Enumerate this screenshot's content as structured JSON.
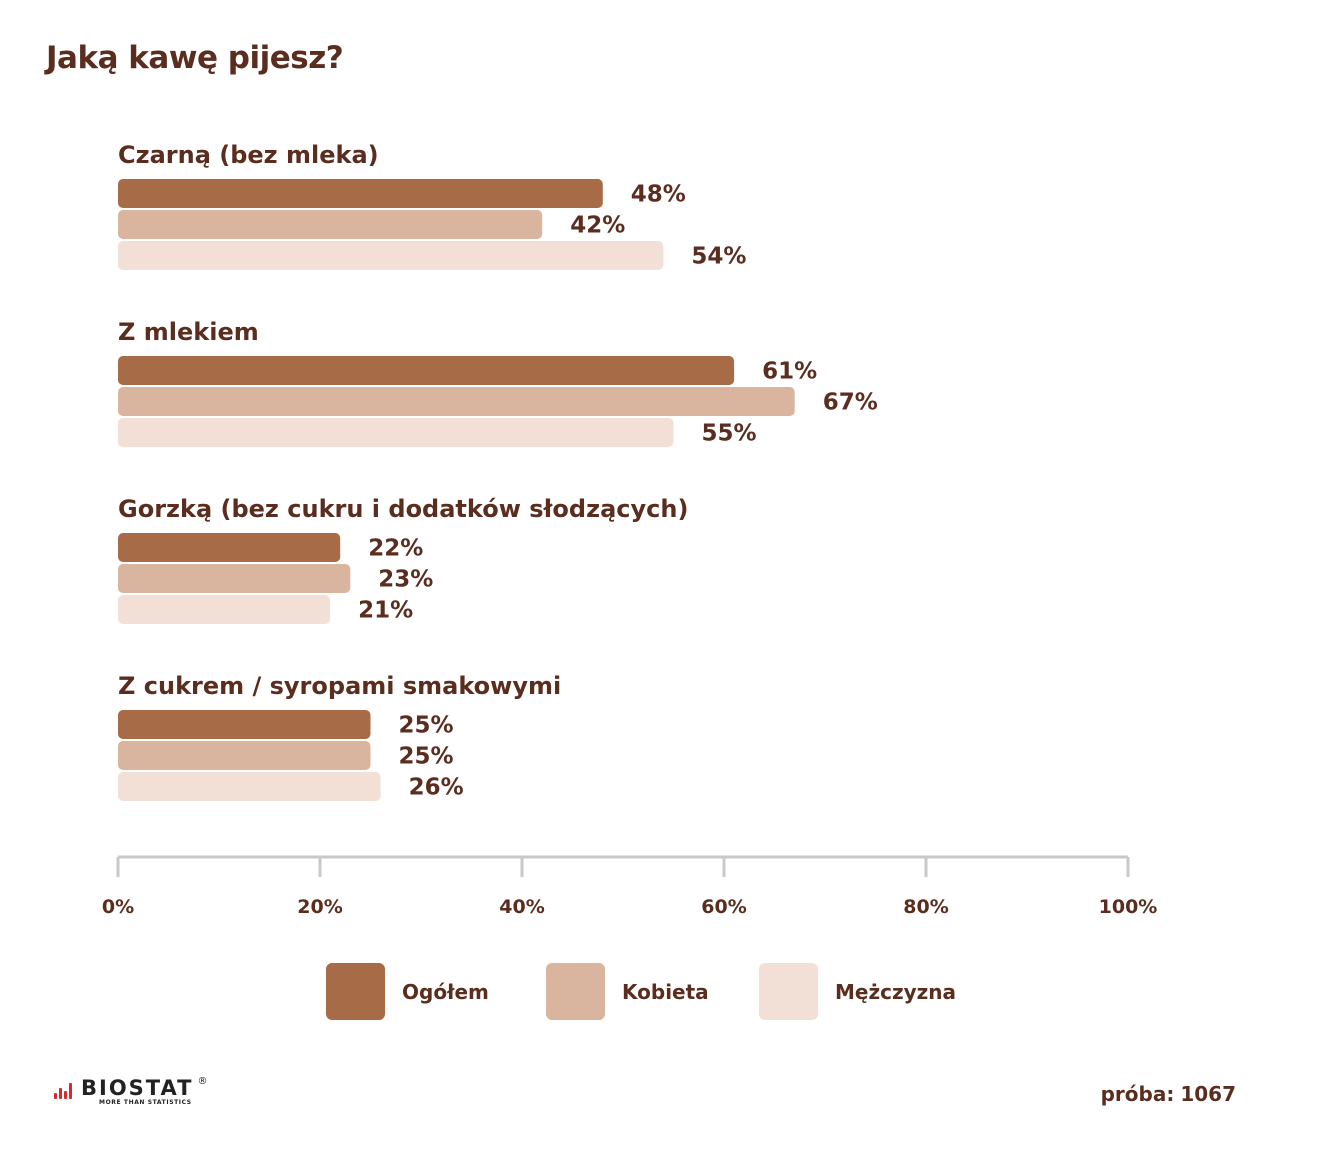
{
  "chart_data": {
    "type": "bar",
    "orientation": "horizontal",
    "title": "Jaką kawę pijesz?",
    "categories": [
      "Czarną (bez mleka)",
      "Z mlekiem",
      "Gorzką (bez cukru i dodatków słodzących)",
      "Z cukrem / syropami smakowymi"
    ],
    "series": [
      {
        "name": "Ogółem",
        "color": "#a86b48",
        "values": [
          48,
          61,
          22,
          25
        ]
      },
      {
        "name": "Kobieta",
        "color": "#d9b49e",
        "values": [
          42,
          67,
          23,
          25
        ]
      },
      {
        "name": "Mężczyzna",
        "color": "#f2e0d6",
        "values": [
          54,
          55,
          21,
          26
        ]
      }
    ],
    "value_suffix": "%",
    "xlim": [
      0,
      100
    ],
    "ticks": [
      0,
      20,
      40,
      60,
      80,
      100
    ],
    "tick_labels": [
      "0%",
      "20%",
      "40%",
      "60%",
      "80%",
      "100%"
    ],
    "axis_color": "#c9c9c9",
    "text_color": "#5a2d1f",
    "legend": "bottom"
  },
  "footer": {
    "brand": "BIOSTAT",
    "registered_mark": "®",
    "tagline": "MORE THAN STATISTICS",
    "sample_label": "próba:",
    "sample_value": "1067",
    "brand_color": "#d8282c"
  }
}
